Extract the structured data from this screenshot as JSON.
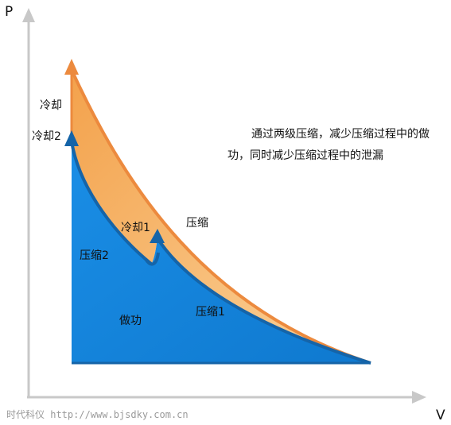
{
  "axes": {
    "y_label": "P",
    "x_label": "V"
  },
  "labels": {
    "cooling_top": "冷却",
    "cooling_2": "冷却2",
    "cooling_1": "冷却1",
    "compression": "压缩",
    "compression_1": "压缩1",
    "compression_2": "压缩2",
    "work": "做功"
  },
  "caption": {
    "line1": "通过两级压缩，减少压缩过程中的做",
    "line2": "功，同时减少压缩过程中的泄漏"
  },
  "watermark": "时代科仪 http://www.bjsdky.com.cn",
  "colors": {
    "blue_fill": "#1b8be0",
    "blue_edge": "#1564a8",
    "orange_fill": "#f6b466",
    "orange_edge": "#ec8a3e",
    "axis": "#c8c8c8"
  }
}
